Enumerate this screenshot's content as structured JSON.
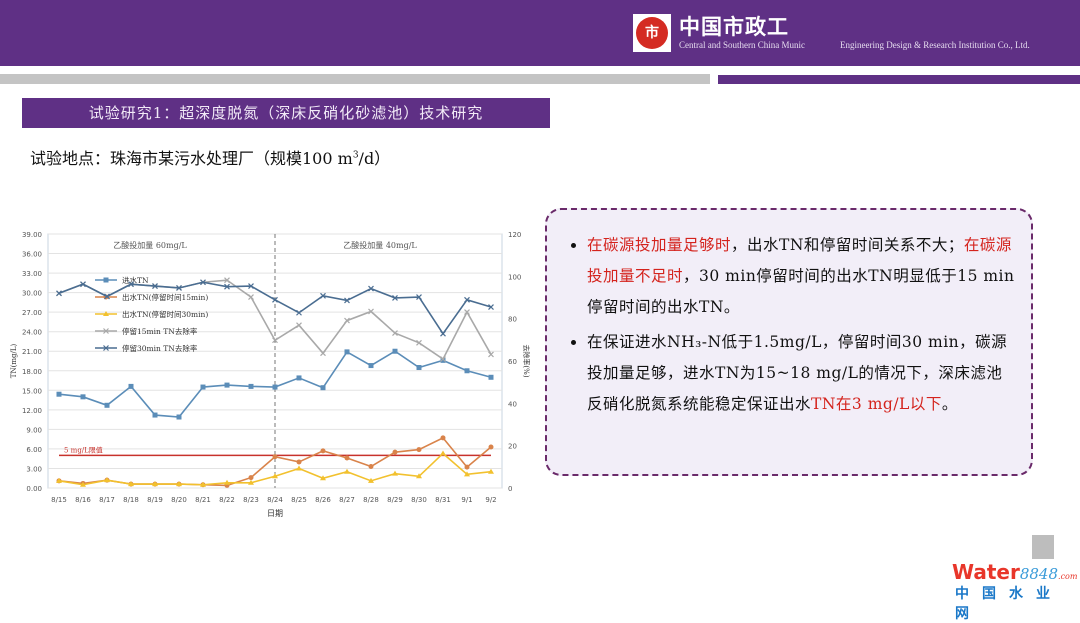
{
  "header": {
    "logo_text": "中国市政工",
    "company_en_1": "Central and Southern China Munic",
    "company_en_2": "Engineering Design & Research Institution Co., Ltd."
  },
  "slide": {
    "title": "试验研究1：超深度脱氮（深床反硝化砂滤池）技术研究",
    "subtitle": "试验地点：珠海市某污水处理厂（规模100 m",
    "subtitle_sup": "3",
    "subtitle_end": "/d）"
  },
  "bullets": [
    {
      "parts": [
        {
          "t": "在碳源投加量足够时",
          "red": true
        },
        {
          "t": "，出水TN和停留时间关系不大；",
          "red": false
        },
        {
          "t": "在碳源投加量不足时",
          "red": true
        },
        {
          "t": "，30 min停留时间的出水TN明显低于15 min停留时间的出水TN。",
          "red": false
        }
      ]
    },
    {
      "parts": [
        {
          "t": "在保证进水NH₃-N低于1.5mg/L，停留时间30 min，碳源投加量足够，进水TN为15~18 mg/L的情况下，深床滤池反硝化脱氮系统能稳定保证出水",
          "red": false
        },
        {
          "t": "TN在3 mg/L以下",
          "red": true
        },
        {
          "t": "。",
          "red": false
        }
      ]
    }
  ],
  "watermark": {
    "brand": "Water",
    "brand_num": "8848",
    "brand_suffix": ".com",
    "cn": "中国水业网"
  },
  "chart_data": {
    "type": "line",
    "xlabel": "日期",
    "ylabel": "TN(mg/L)",
    "y2label": "去除率(%)",
    "ylim": [
      0,
      39
    ],
    "y2lim": [
      0,
      120
    ],
    "yticks": [
      "0.00",
      "3.00",
      "6.00",
      "9.00",
      "12.00",
      "15.00",
      "18.00",
      "21.00",
      "24.00",
      "27.00",
      "30.00",
      "33.00",
      "36.00",
      "39.00"
    ],
    "y2ticks": [
      "0",
      "20",
      "40",
      "60",
      "80",
      "100",
      "120"
    ],
    "categories": [
      "8/15",
      "8/16",
      "8/17",
      "8/18",
      "8/19",
      "8/20",
      "8/21",
      "8/22",
      "8/23",
      "8/24",
      "8/25",
      "8/26",
      "8/27",
      "8/28",
      "8/29",
      "8/30",
      "8/31",
      "9/1",
      "9/2"
    ],
    "grid": true,
    "legend": "left-middle",
    "annotations": {
      "phase1": "乙酸投加量 60mg/L",
      "phase2": "乙酸投加量 40mg/L",
      "limit_label": "5 mg/L限值",
      "limit_value": 5,
      "divider_at": "8/24"
    },
    "series": [
      {
        "name": "进水TN",
        "axis": "left",
        "color": "#5b8db8",
        "marker": "square",
        "values": [
          14.4,
          14.0,
          12.7,
          15.6,
          11.2,
          10.9,
          15.5,
          15.8,
          15.6,
          15.5,
          16.9,
          15.4,
          20.9,
          18.8,
          21.0,
          18.5,
          19.6,
          18.0,
          17.0
        ]
      },
      {
        "name": "出水TN(停留时间15min)",
        "axis": "left",
        "color": "#d9834a",
        "marker": "circle",
        "values": [
          1.1,
          0.7,
          1.2,
          0.6,
          0.6,
          0.6,
          0.5,
          0.4,
          1.6,
          4.8,
          4.0,
          5.7,
          4.6,
          3.3,
          5.5,
          5.9,
          7.7,
          3.2,
          6.3
        ]
      },
      {
        "name": "出水TN(停留时间30min)",
        "axis": "left",
        "color": "#f2c12e",
        "marker": "triangle",
        "values": [
          1.1,
          0.5,
          1.2,
          0.6,
          0.6,
          0.6,
          0.5,
          0.8,
          0.8,
          1.8,
          3.0,
          1.5,
          2.5,
          1.1,
          2.2,
          1.8,
          5.3,
          2.1,
          2.5
        ]
      },
      {
        "name": "停留15min TN去除率",
        "axis": "right",
        "color": "#a9a9a9",
        "marker": "x",
        "values": [
          92,
          96.3,
          90.5,
          96.3,
          95.4,
          94.5,
          97.2,
          98.2,
          90.2,
          69.8,
          76.9,
          63.7,
          79.1,
          83.4,
          73.2,
          68.6,
          60.9,
          83.1,
          63.1
        ]
      },
      {
        "name": "停留30min TN去除率",
        "axis": "right",
        "color": "#4a6d91",
        "marker": "x",
        "values": [
          92,
          96.3,
          90.5,
          96.3,
          95.4,
          94.5,
          97.2,
          95.1,
          95.4,
          88.9,
          82.8,
          90.8,
          88.6,
          94.2,
          89.8,
          90.2,
          72.9,
          88.9,
          85.5
        ]
      }
    ]
  }
}
